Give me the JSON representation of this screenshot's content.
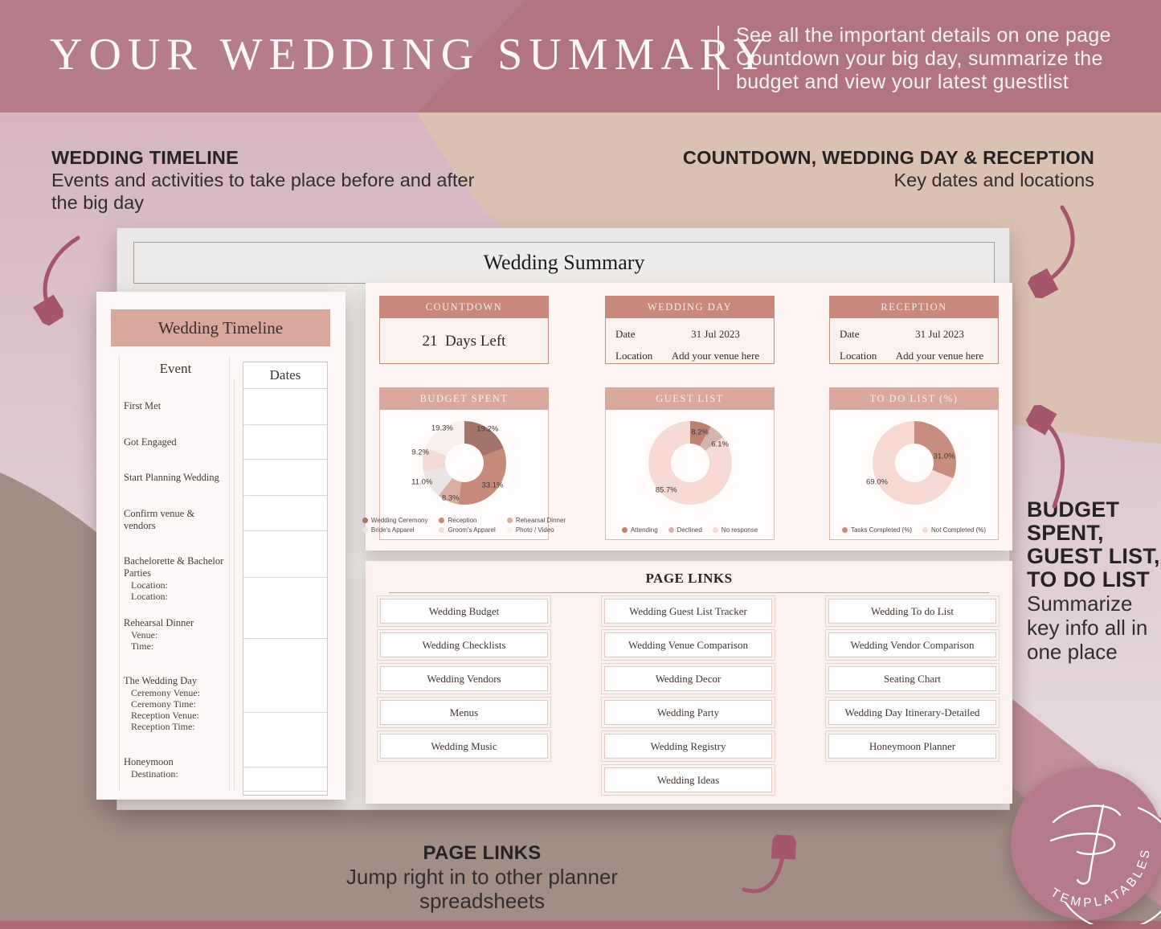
{
  "colors": {
    "header_bg": "#b17582",
    "body_pink": "#d9bcc6",
    "body_beige": "#dbc1b1",
    "body_taupe": "#a28e85",
    "corner_mauve": "#c29099",
    "bottom_strip": "#ad6a73",
    "arrow": "#a4566a",
    "info_card_band": "#c8887a",
    "chart_card_band": "#d9a89c",
    "timeline_band": "#d9a89c",
    "logo_bg": "#b57b8c"
  },
  "header": {
    "title": "YOUR WEDDING SUMMARY",
    "tagline_lines": [
      "See all the important details on one page",
      "Countdown your big day, summarize the",
      "budget and view your latest guestlist"
    ]
  },
  "callouts": {
    "timeline": {
      "title": "WEDDING TIMELINE",
      "desc": "Events and activities to take place before and after the big day"
    },
    "key_dates": {
      "title": "COUNTDOWN, WEDDING DAY & RECEPTION",
      "desc": "Key dates and locations"
    },
    "summary_charts": {
      "title_lines": [
        "BUDGET",
        "SPENT,",
        "GUEST LIST,",
        "TO DO LIST"
      ],
      "desc_lines": [
        "Summarize",
        "key info all in",
        "one place"
      ]
    },
    "page_links": {
      "title": "PAGE LINKS",
      "desc": "Jump right in to other planner spreadsheets"
    }
  },
  "spreadsheet": {
    "window_title": "Wedding Summary",
    "timeline_card": {
      "title": "Wedding Timeline",
      "columns": {
        "event": "Event",
        "dates": "Dates"
      },
      "events": [
        {
          "label": "First Met",
          "subs": []
        },
        {
          "label": "Got Engaged",
          "subs": []
        },
        {
          "label": "Start Planning Wedding",
          "subs": []
        },
        {
          "label": "Confirm venue & vendors",
          "subs": []
        },
        {
          "label": "Bachelorette & Bachelor Parties",
          "subs": [
            "Location:",
            "Location:"
          ]
        },
        {
          "label": "Rehearsal Dinner",
          "subs": [
            "Venue:",
            "Time:"
          ]
        },
        {
          "label": "The Wedding Day",
          "subs": [
            "Ceremony Venue:",
            "Ceremony Time:",
            "Reception Venue:",
            "Reception Time:"
          ]
        },
        {
          "label": "Honeymoon",
          "subs": [
            "Destination:"
          ]
        }
      ]
    },
    "info_cards": [
      {
        "title": "COUNTDOWN",
        "value": "21  Days Left"
      },
      {
        "title": "WEDDING DAY",
        "rows": [
          [
            "Date",
            "31 Jul 2023"
          ],
          [
            "Location",
            "Add your venue here"
          ]
        ]
      },
      {
        "title": "RECEPTION",
        "rows": [
          [
            "Date",
            "31 Jul 2023"
          ],
          [
            "Location",
            "Add your venue here"
          ]
        ]
      }
    ],
    "page_links": {
      "title": "PAGE LINKS",
      "rows": [
        [
          "Wedding Budget",
          "Wedding Guest List Tracker",
          "Wedding To do List"
        ],
        [
          "Wedding Checklists",
          "Wedding Venue Comparison",
          "Wedding Vendor Comparison"
        ],
        [
          "Wedding Vendors",
          "Wedding Decor",
          "Seating Chart"
        ],
        [
          "Menus",
          "Wedding Party",
          "Wedding Day Itinerary-Detailed"
        ],
        [
          "Wedding Music",
          "Wedding Registry",
          "Honeymoon Planner"
        ],
        [
          "",
          "Wedding Ideas",
          ""
        ]
      ]
    }
  },
  "chart_data": [
    {
      "type": "pie",
      "subtype": "donut",
      "title": "BUDGET SPENT",
      "legend_layout": "grid3",
      "slices": [
        {
          "label": "Wedding Ceremony",
          "value": 19.2,
          "color": "#a3756a",
          "label_pos": [
            64,
            17
          ]
        },
        {
          "label": "Reception",
          "value": 33.1,
          "color": "#c58a7a",
          "label_pos": [
            67,
            72
          ]
        },
        {
          "label": "Rehearsal Dinner",
          "value": 8.3,
          "color": "#dcaea3",
          "label_pos": [
            42,
            85
          ]
        },
        {
          "label": "Bride's Apparel",
          "value": 11.0,
          "color": "#ebe6e4",
          "label_pos": [
            25,
            69
          ]
        },
        {
          "label": "Groom's Apparel",
          "value": 9.2,
          "color": "#f3dbd5",
          "label_pos": [
            24,
            40
          ]
        },
        {
          "label": "Photo / Video",
          "value": 19.3,
          "color": "#f8f0ee",
          "label_pos": [
            37,
            16
          ]
        }
      ]
    },
    {
      "type": "pie",
      "subtype": "donut",
      "title": "GUEST LIST",
      "legend_layout": "row",
      "slices": [
        {
          "label": "Attending",
          "value": 8.2,
          "color": "#bf8172",
          "label_pos": [
            56,
            20
          ]
        },
        {
          "label": "Declined",
          "value": 6.1,
          "color": "#d2b5ae",
          "label_pos": [
            68,
            32
          ]
        },
        {
          "label": "No response",
          "value": 85.7,
          "color": "#f6dad3",
          "label_pos": [
            36,
            77
          ]
        }
      ]
    },
    {
      "type": "pie",
      "subtype": "donut",
      "title": "TO DO LIST (%)",
      "legend_layout": "row",
      "slices": [
        {
          "label": "Tasks Completed (%)",
          "value": 31.0,
          "color": "#c78e80",
          "label_pos": [
            68,
            44
          ]
        },
        {
          "label": "Not Completed (%)",
          "value": 69.0,
          "color": "#f5d9d2",
          "label_pos": [
            28,
            69
          ]
        }
      ]
    }
  ],
  "logo": {
    "text": "TEMPLATABLES"
  }
}
